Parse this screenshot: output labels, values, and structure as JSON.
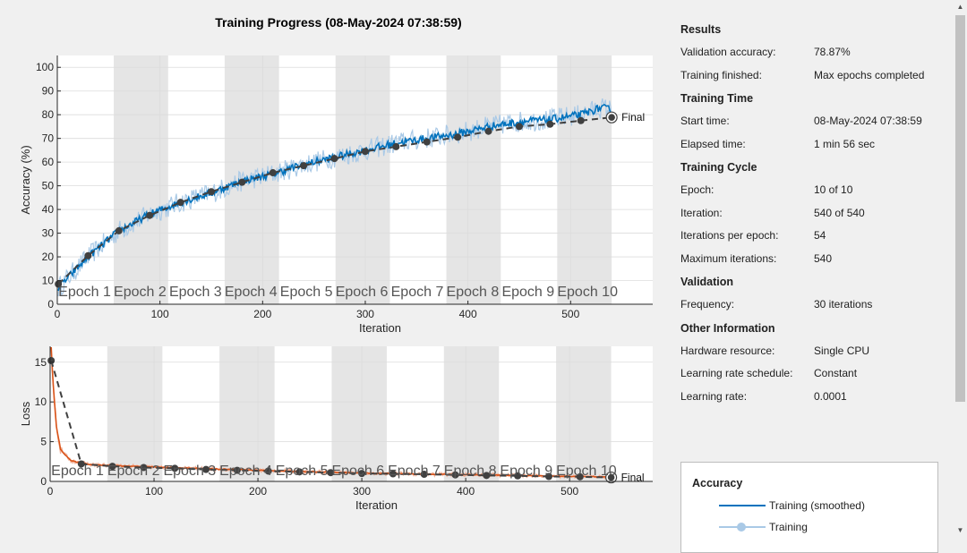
{
  "window": {
    "title": "Training Progress (08-May-2024 07:38:59)"
  },
  "colors": {
    "accuracy_smoothed": "#0072bd",
    "accuracy_raw": "#a9c9e6",
    "loss_smoothed": "#d95319",
    "loss_raw": "#f1b39b",
    "validation": "#404040",
    "epoch_band": "#e5e5e5"
  },
  "legend": {
    "title": "Accuracy",
    "items": [
      {
        "label": "Training (smoothed)"
      },
      {
        "label": "Training"
      }
    ]
  },
  "results_panel": {
    "sections": [
      {
        "title": "Results",
        "rows": [
          {
            "key": "Validation accuracy:",
            "value": "78.87%"
          },
          {
            "key": "Training finished:",
            "value": "Max epochs completed"
          }
        ]
      },
      {
        "title": "Training Time",
        "rows": [
          {
            "key": "Start time:",
            "value": "08-May-2024 07:38:59"
          },
          {
            "key": "Elapsed time:",
            "value": "1 min 56 sec"
          }
        ]
      },
      {
        "title": "Training Cycle",
        "rows": [
          {
            "key": "Epoch:",
            "value": "10 of 10"
          },
          {
            "key": "Iteration:",
            "value": "540 of 540"
          },
          {
            "key": "Iterations per epoch:",
            "value": "54"
          },
          {
            "key": "Maximum iterations:",
            "value": "540"
          }
        ]
      },
      {
        "title": "Validation",
        "rows": [
          {
            "key": "Frequency:",
            "value": "30 iterations"
          }
        ]
      },
      {
        "title": "Other Information",
        "rows": [
          {
            "key": "Hardware resource:",
            "value": "Single CPU"
          },
          {
            "key": "Learning rate schedule:",
            "value": "Constant"
          },
          {
            "key": "Learning rate:",
            "value": "0.0001"
          }
        ]
      }
    ]
  },
  "chart_data": [
    {
      "type": "line",
      "title": "Training Progress (08-May-2024 07:38:59)",
      "xlabel": "Iteration",
      "ylabel": "Accuracy (%)",
      "xlim": [
        0,
        580
      ],
      "ylim": [
        0,
        105
      ],
      "xticks": [
        0,
        100,
        200,
        300,
        400,
        500
      ],
      "yticks": [
        0,
        10,
        20,
        30,
        40,
        50,
        60,
        70,
        80,
        90,
        100
      ],
      "grid": true,
      "epoch_labels": [
        "Epoch 1",
        "Epoch 2",
        "Epoch 3",
        "Epoch 4",
        "Epoch 5",
        "Epoch 6",
        "Epoch 7",
        "Epoch 8",
        "Epoch 9",
        "Epoch 10"
      ],
      "iterations_per_epoch": 54,
      "final_label": "Final",
      "series": [
        {
          "name": "Training (smoothed)",
          "anchors": [
            [
              1,
              7
            ],
            [
              30,
              20
            ],
            [
              60,
              31
            ],
            [
              90,
              38
            ],
            [
              120,
              43
            ],
            [
              150,
              47
            ],
            [
              180,
              52
            ],
            [
              210,
              55
            ],
            [
              240,
              59
            ],
            [
              270,
              62
            ],
            [
              300,
              65
            ],
            [
              330,
              68
            ],
            [
              360,
              70
            ],
            [
              390,
              72
            ],
            [
              420,
              75
            ],
            [
              450,
              77
            ],
            [
              480,
              78
            ],
            [
              510,
              80
            ],
            [
              530,
              83
            ],
            [
              540,
              82
            ]
          ]
        },
        {
          "name": "Training",
          "anchors": [
            [
              1,
              7
            ],
            [
              30,
              20
            ],
            [
              60,
              31
            ],
            [
              90,
              38
            ],
            [
              120,
              43
            ],
            [
              150,
              47
            ],
            [
              180,
              52
            ],
            [
              210,
              55
            ],
            [
              240,
              59
            ],
            [
              270,
              62
            ],
            [
              300,
              65
            ],
            [
              330,
              68
            ],
            [
              360,
              70
            ],
            [
              390,
              72
            ],
            [
              420,
              75
            ],
            [
              450,
              77
            ],
            [
              480,
              78
            ],
            [
              510,
              80
            ],
            [
              530,
              83
            ],
            [
              540,
              82
            ]
          ]
        },
        {
          "name": "Validation",
          "x": [
            1,
            30,
            60,
            90,
            120,
            150,
            180,
            210,
            240,
            270,
            300,
            330,
            360,
            390,
            420,
            450,
            480,
            510,
            540
          ],
          "values": [
            8.5,
            20.5,
            31,
            37.5,
            43,
            47.5,
            51.5,
            55.5,
            58.5,
            61.5,
            64.5,
            66.5,
            68.5,
            70.5,
            73,
            75,
            76,
            77.5,
            78.87
          ]
        }
      ]
    },
    {
      "type": "line",
      "xlabel": "Iteration",
      "ylabel": "Loss",
      "xlim": [
        0,
        580
      ],
      "ylim": [
        0,
        17
      ],
      "xticks": [
        0,
        100,
        200,
        300,
        400,
        500
      ],
      "yticks": [
        0,
        5,
        10,
        15
      ],
      "grid": true,
      "epoch_labels": [
        "Epoch 1",
        "Epoch 2",
        "Epoch 3",
        "Epoch 4",
        "Epoch 5",
        "Epoch 6",
        "Epoch 7",
        "Epoch 8",
        "Epoch 9",
        "Epoch 10"
      ],
      "iterations_per_epoch": 54,
      "final_label": "Final",
      "series": [
        {
          "name": "Training (smoothed)",
          "anchors": [
            [
              1,
              16.8
            ],
            [
              3,
              12
            ],
            [
              6,
              7
            ],
            [
              10,
              4
            ],
            [
              20,
              2.6
            ],
            [
              40,
              2.1
            ],
            [
              100,
              1.8
            ],
            [
              200,
              1.4
            ],
            [
              300,
              1.05
            ],
            [
              400,
              0.85
            ],
            [
              500,
              0.65
            ],
            [
              540,
              0.55
            ]
          ]
        },
        {
          "name": "Training",
          "anchors": [
            [
              1,
              16.8
            ],
            [
              3,
              12
            ],
            [
              6,
              7
            ],
            [
              10,
              4
            ],
            [
              20,
              2.6
            ],
            [
              40,
              2.1
            ],
            [
              100,
              1.8
            ],
            [
              200,
              1.4
            ],
            [
              300,
              1.05
            ],
            [
              400,
              0.85
            ],
            [
              500,
              0.65
            ],
            [
              540,
              0.55
            ]
          ]
        },
        {
          "name": "Validation",
          "x": [
            1,
            30,
            60,
            90,
            120,
            150,
            180,
            210,
            240,
            270,
            300,
            330,
            360,
            390,
            420,
            450,
            480,
            510,
            540
          ],
          "values": [
            15.2,
            2.2,
            1.9,
            1.75,
            1.65,
            1.5,
            1.4,
            1.3,
            1.2,
            1.1,
            1.0,
            0.95,
            0.9,
            0.82,
            0.75,
            0.7,
            0.62,
            0.58,
            0.5
          ]
        }
      ]
    }
  ]
}
